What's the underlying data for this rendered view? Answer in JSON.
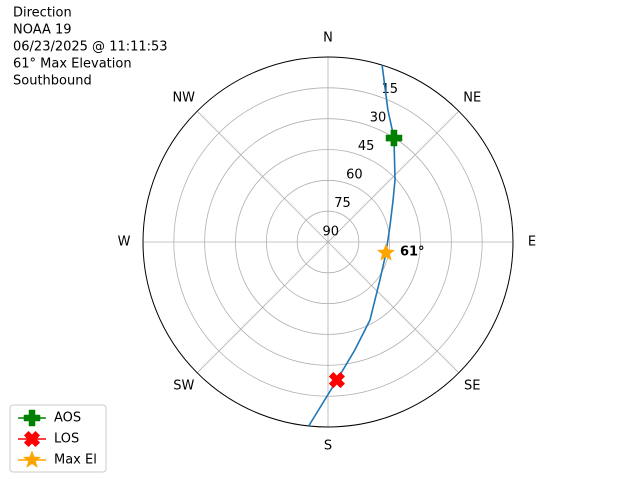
{
  "chart_data": {
    "type": "polar",
    "title_lines": [
      "Direction",
      "NOAA 19",
      "06/23/2025 @ 11:11:53",
      "61° Max Elevation",
      "Southbound"
    ],
    "rlim": [
      90,
      0
    ],
    "rticks": [
      15,
      30,
      45,
      60,
      75,
      90
    ],
    "theta_ticks": [
      {
        "value": 0,
        "label": "N"
      },
      {
        "value": 45,
        "label": "NE"
      },
      {
        "value": 90,
        "label": "E"
      },
      {
        "value": 135,
        "label": "SE"
      },
      {
        "value": 180,
        "label": "S"
      },
      {
        "value": 225,
        "label": "SW"
      },
      {
        "value": 270,
        "label": "W"
      },
      {
        "value": 315,
        "label": "NW"
      }
    ],
    "grid": true,
    "legend": "lower left",
    "series": [
      {
        "color": "#1f77b4",
        "marker": "none",
        "az": [
          17,
          24.4,
          32.4,
          47.2,
          57.1,
          74.7,
          100.7,
          126.2,
          151.7,
          166,
          176.3,
          186
        ],
        "el": [
          0,
          19.5,
          30.1,
          45.6,
          52.3,
          58.7,
          61.3,
          58.7,
          46.9,
          35.9,
          22.7,
          0
        ]
      },
      {
        "name": "AOS",
        "color": "green",
        "marker": "plus",
        "az": [
          32.4
        ],
        "el": [
          30.1
        ]
      },
      {
        "name": "LOS",
        "color": "red",
        "marker": "x",
        "az": [
          176.3
        ],
        "el": [
          22.7
        ]
      },
      {
        "name": "Max El",
        "color": "orange",
        "marker": "star",
        "az": [
          100.7
        ],
        "el": [
          61.3
        ],
        "annotation": "61°"
      }
    ]
  }
}
